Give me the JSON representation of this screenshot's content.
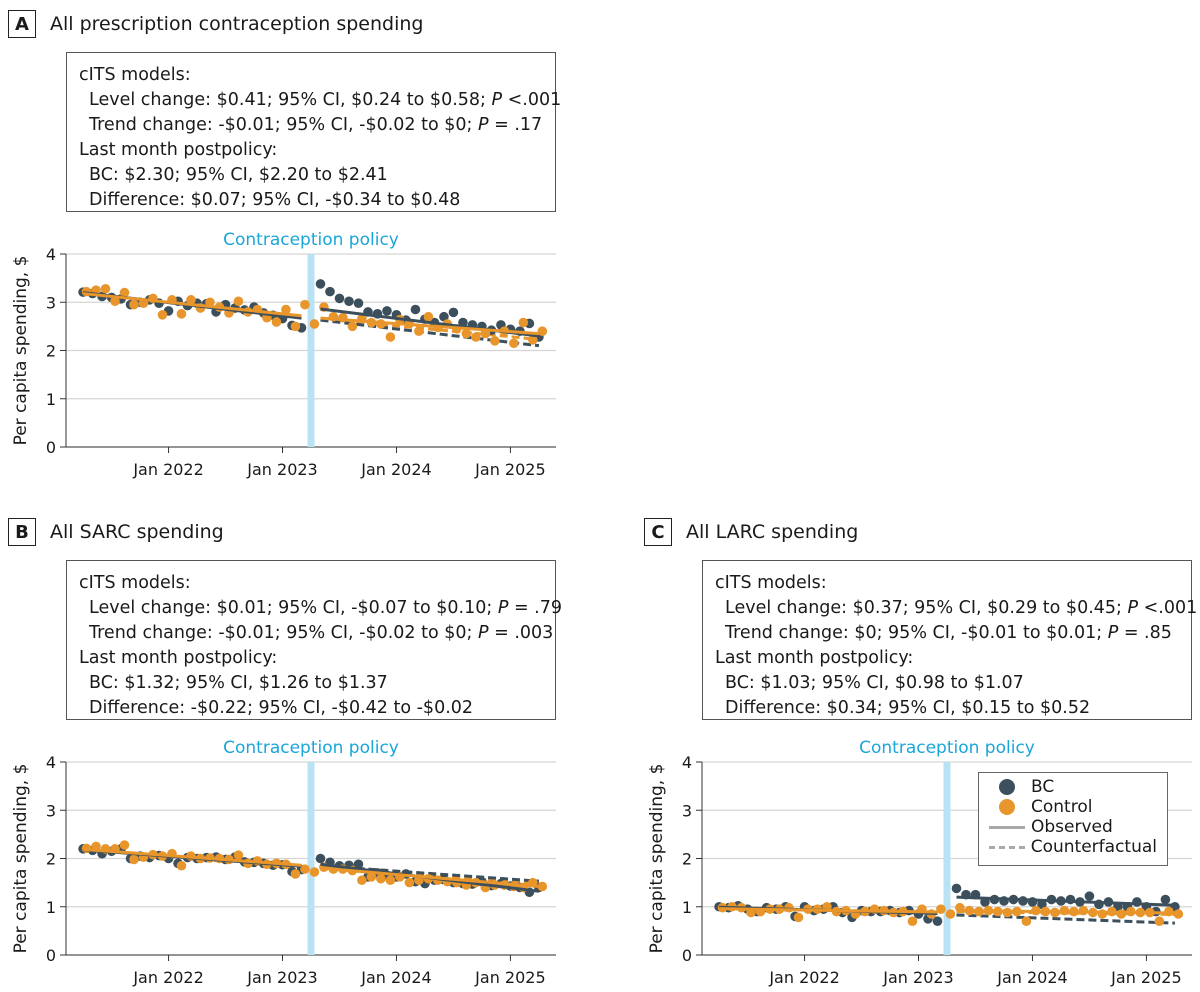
{
  "colors": {
    "bc": "#3c4f5c",
    "control": "#e8962b",
    "policy_band": "#b9e2f5",
    "policy_text": "#1aa6d9",
    "grid": "#d5d5d5"
  },
  "panels": [
    {
      "letter": "A",
      "title": "All prescription contraception spending",
      "stats": {
        "header": "cITS models:",
        "level": [
          "Level change: $0.41; 95% CI, $0.24 to $0.58; ",
          "P",
          " <.001"
        ],
        "trend": [
          "Trend change: -$0.01; 95% CI, -$0.02 to $0; ",
          "P",
          " = .17"
        ],
        "last_header": "Last month postpolicy:",
        "bc": "BC: $2.30; 95% CI, $2.20 to $2.41",
        "diff": "Difference: $0.07; 95% CI, -$0.34 to $0.48"
      }
    },
    {
      "letter": "B",
      "title": "All SARC spending",
      "stats": {
        "header": "cITS models:",
        "level": [
          "Level change: $0.01; 95% CI, -$0.07 to $0.10; ",
          "P",
          " = .79"
        ],
        "trend": [
          "Trend change: -$0.01; 95% CI, -$0.02 to $0; ",
          "P",
          " = .003"
        ],
        "last_header": "Last month postpolicy:",
        "bc": "BC: $1.32; 95% CI, $1.26 to $1.37",
        "diff": "Difference: -$0.22; 95% CI, -$0.42 to -$0.02"
      }
    },
    {
      "letter": "C",
      "title": "All LARC spending",
      "stats": {
        "header": "cITS models:",
        "level": [
          "Level change: $0.37; 95% CI, $0.29 to $0.45; ",
          "P",
          " <.001"
        ],
        "trend": [
          "Trend change: $0; 95% CI, -$0.01 to $0.01; ",
          "P",
          " = .85"
        ],
        "last_header": "Last month postpolicy:",
        "bc": "BC: $1.03; 95% CI, $0.98 to $1.07",
        "diff": "Difference: $0.34; 95% CI, $0.15 to $0.52"
      }
    }
  ],
  "legend": {
    "bc": "BC",
    "control": "Control",
    "observed": "Observed",
    "counterfactual": "Counterfactual"
  },
  "chart_data": [
    {
      "type": "scatter",
      "panel": "A",
      "ylabel": "Per capita spending, $",
      "policy_label": "Contraception policy",
      "policy_x": 2023.25,
      "xlim": [
        2021.1,
        2025.4
      ],
      "ylim": [
        0,
        4
      ],
      "yticks": [
        0,
        1,
        2,
        3,
        4
      ],
      "xticks": [
        {
          "v": 2022,
          "label": "Jan 2022"
        },
        {
          "v": 2023,
          "label": "Jan 2023"
        },
        {
          "v": 2024,
          "label": "Jan 2024"
        },
        {
          "v": 2025,
          "label": "Jan 2025"
        }
      ],
      "grid": true,
      "x_start": 2021.25,
      "months_pre": 24,
      "months_post": 24,
      "series": [
        {
          "name": "BC",
          "values": [
            3.21,
            3.18,
            3.12,
            3.1,
            3.07,
            2.95,
            3.0,
            3.05,
            2.98,
            2.82,
            3.02,
            2.93,
            2.98,
            2.97,
            2.8,
            2.95,
            2.88,
            2.84,
            2.9,
            2.78,
            2.73,
            2.66,
            2.52,
            2.47,
            3.38,
            3.22,
            3.08,
            3.02,
            2.98,
            2.8,
            2.76,
            2.82,
            2.74,
            2.63,
            2.85,
            2.65,
            2.58,
            2.7,
            2.79,
            2.58,
            2.53,
            2.5,
            2.42,
            2.53,
            2.44,
            2.4,
            2.56,
            2.28
          ]
        },
        {
          "name": "Control",
          "values": [
            3.22,
            3.25,
            3.28,
            3.02,
            3.2,
            2.95,
            2.98,
            3.08,
            2.74,
            3.05,
            2.76,
            3.05,
            2.88,
            3.0,
            2.9,
            2.78,
            3.02,
            2.8,
            2.85,
            2.68,
            2.59,
            2.85,
            2.5,
            2.95,
            2.55,
            2.9,
            2.7,
            2.68,
            2.5,
            2.66,
            2.58,
            2.55,
            2.28,
            2.64,
            2.56,
            2.4,
            2.7,
            2.48,
            2.55,
            2.45,
            2.35,
            2.28,
            2.35,
            2.2,
            2.4,
            2.15,
            2.58,
            2.22,
            2.4
          ]
        }
      ],
      "fits": {
        "bc_pre": [
          3.2,
          2.67
        ],
        "bc_post": [
          2.86,
          2.3
        ],
        "bc_cf": [
          2.63,
          2.1
        ],
        "ctrl_pre": [
          3.18,
          2.72
        ],
        "ctrl_post": [
          2.67,
          2.35
        ],
        "ctrl_cf": [
          2.66,
          2.23
        ]
      }
    },
    {
      "type": "scatter",
      "panel": "B",
      "ylabel": "Per capita spending, $",
      "policy_label": "Contraception policy",
      "policy_x": 2023.25,
      "xlim": [
        2021.1,
        2025.4
      ],
      "ylim": [
        0,
        4
      ],
      "yticks": [
        0,
        1,
        2,
        3,
        4
      ],
      "xticks": [
        {
          "v": 2022,
          "label": "Jan 2022"
        },
        {
          "v": 2023,
          "label": "Jan 2023"
        },
        {
          "v": 2024,
          "label": "Jan 2024"
        },
        {
          "v": 2025,
          "label": "Jan 2025"
        }
      ],
      "grid": true,
      "x_start": 2021.25,
      "months_pre": 24,
      "months_post": 24,
      "series": [
        {
          "name": "BC",
          "values": [
            2.2,
            2.17,
            2.1,
            2.15,
            2.2,
            2.0,
            2.05,
            2.02,
            2.06,
            2.0,
            1.9,
            2.02,
            2.0,
            2.02,
            2.03,
            1.98,
            2.03,
            1.93,
            1.92,
            1.9,
            1.86,
            1.87,
            1.73,
            1.77,
            2.0,
            1.92,
            1.85,
            1.86,
            1.88,
            1.62,
            1.7,
            1.65,
            1.62,
            1.68,
            1.52,
            1.48,
            1.55,
            1.56,
            1.5,
            1.48,
            1.47,
            1.52,
            1.44,
            1.48,
            1.43,
            1.4,
            1.3,
            1.4
          ]
        },
        {
          "name": "Control",
          "values": [
            2.21,
            2.25,
            2.2,
            2.2,
            2.28,
            1.98,
            2.03,
            2.08,
            2.05,
            2.1,
            1.85,
            2.05,
            2.0,
            2.01,
            2.0,
            1.98,
            2.07,
            1.9,
            1.95,
            1.88,
            1.9,
            1.88,
            1.68,
            1.78,
            1.72,
            1.82,
            1.78,
            1.78,
            1.75,
            1.55,
            1.62,
            1.58,
            1.55,
            1.62,
            1.5,
            1.55,
            1.58,
            1.55,
            1.52,
            1.5,
            1.45,
            1.5,
            1.4,
            1.45,
            1.45,
            1.42,
            1.4,
            1.5,
            1.42
          ]
        }
      ],
      "fits": {
        "bc_pre": [
          2.18,
          1.84
        ],
        "bc_post": [
          1.88,
          1.32
        ],
        "bc_cf": [
          1.85,
          1.53
        ],
        "ctrl_pre": [
          2.19,
          1.86
        ],
        "ctrl_post": [
          1.8,
          1.42
        ],
        "ctrl_cf": [
          1.82,
          1.48
        ]
      }
    },
    {
      "type": "scatter",
      "panel": "C",
      "ylabel": "Per capita spending, $",
      "policy_label": "Contraception policy",
      "policy_x": 2023.25,
      "xlim": [
        2021.1,
        2025.4
      ],
      "ylim": [
        0,
        4
      ],
      "yticks": [
        0,
        1,
        2,
        3,
        4
      ],
      "xticks": [
        {
          "v": 2022,
          "label": "Jan 2022"
        },
        {
          "v": 2023,
          "label": "Jan 2023"
        },
        {
          "v": 2024,
          "label": "Jan 2024"
        },
        {
          "v": 2025,
          "label": "Jan 2025"
        }
      ],
      "grid": true,
      "x_start": 2021.25,
      "months_pre": 24,
      "months_post": 24,
      "series": [
        {
          "name": "BC",
          "values": [
            1.0,
            0.98,
            1.02,
            0.95,
            0.9,
            0.98,
            0.95,
            1.0,
            0.8,
            1.0,
            0.92,
            0.95,
            1.0,
            0.88,
            0.78,
            0.92,
            0.9,
            0.9,
            0.92,
            0.88,
            0.92,
            0.85,
            0.75,
            0.7,
            1.38,
            1.25,
            1.25,
            1.1,
            1.15,
            1.12,
            1.15,
            1.12,
            1.1,
            1.05,
            1.15,
            1.12,
            1.15,
            1.1,
            1.22,
            1.05,
            1.1,
            1.0,
            1.0,
            1.1,
            1.0,
            0.9,
            1.15,
            1.0
          ]
        },
        {
          "name": "Control",
          "values": [
            0.98,
            1.0,
            0.98,
            0.88,
            0.9,
            0.95,
            0.95,
            0.98,
            0.78,
            0.95,
            0.95,
            1.0,
            0.9,
            0.92,
            0.85,
            0.9,
            0.95,
            0.92,
            0.88,
            0.9,
            0.7,
            0.95,
            0.85,
            0.95,
            0.85,
            0.98,
            0.92,
            0.9,
            0.92,
            0.9,
            0.88,
            0.9,
            0.7,
            0.92,
            0.9,
            0.88,
            0.92,
            0.9,
            0.92,
            0.88,
            0.85,
            0.9,
            0.85,
            0.9,
            0.88,
            0.88,
            0.7,
            0.9,
            0.85
          ]
        }
      ],
      "fits": {
        "bc_pre": [
          0.99,
          0.86
        ],
        "bc_post": [
          1.2,
          1.03
        ],
        "bc_cf": [
          0.83,
          0.66
        ],
        "ctrl_pre": [
          0.96,
          0.89
        ],
        "ctrl_post": [
          0.92,
          0.87
        ],
        "ctrl_cf": [
          0.9,
          0.84
        ]
      }
    }
  ]
}
